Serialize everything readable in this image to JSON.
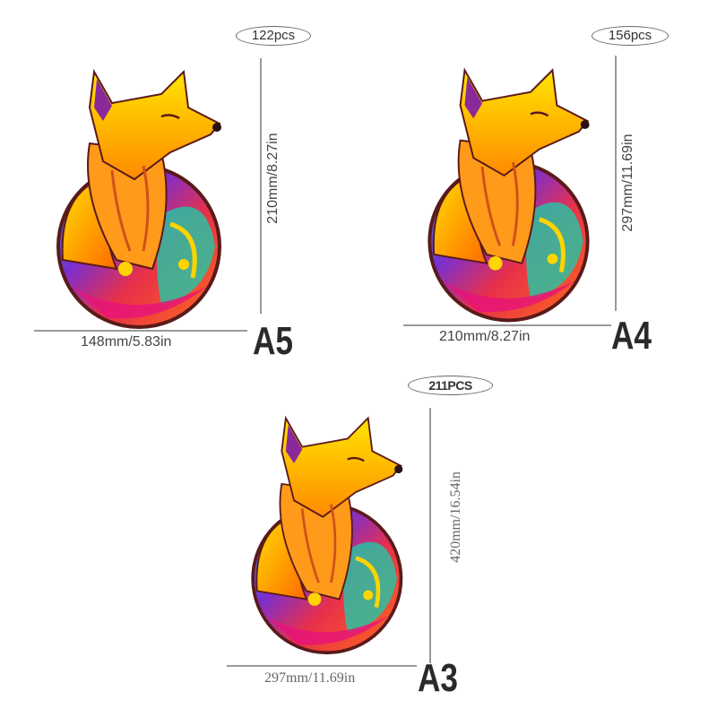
{
  "variants": [
    {
      "size": "A5",
      "pieces": "122pcs",
      "height": "210mm/8.27in",
      "width": "148mm/5.83in"
    },
    {
      "size": "A4",
      "pieces": "156pcs",
      "height": "297mm/11.69in",
      "width": "210mm/8.27in"
    },
    {
      "size": "A3",
      "pieces": "211PCS",
      "height": "420mm/16.54in",
      "width": "297mm/11.69in"
    }
  ]
}
